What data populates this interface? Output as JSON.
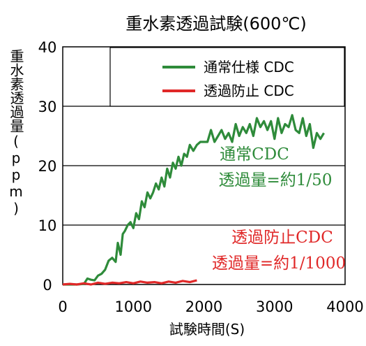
{
  "chart_data": {
    "type": "line",
    "title": "重水素透過試験(600℃)",
    "xlabel": "試験時間(S)",
    "ylabel": "重水素透過量(ppm)",
    "xlim": [
      0,
      4000
    ],
    "ylim": [
      0,
      40
    ],
    "xticks": [
      0,
      1000,
      2000,
      3000,
      4000
    ],
    "yticks": [
      0,
      10,
      20,
      30,
      40
    ],
    "grid": "horizontal",
    "legend_position": "top-right",
    "series": [
      {
        "name": "通常仕様 CDC",
        "color": "#2e8b3a",
        "x": [
          0,
          100,
          200,
          300,
          350,
          400,
          450,
          500,
          550,
          600,
          650,
          700,
          750,
          780,
          820,
          850,
          880,
          920,
          960,
          1000,
          1040,
          1080,
          1120,
          1160,
          1200,
          1240,
          1280,
          1320,
          1360,
          1400,
          1440,
          1480,
          1520,
          1560,
          1600,
          1640,
          1680,
          1720,
          1760,
          1800,
          1850,
          1900,
          1950,
          2000,
          2050,
          2100,
          2150,
          2200,
          2250,
          2300,
          2350,
          2400,
          2450,
          2500,
          2550,
          2600,
          2650,
          2700,
          2750,
          2800,
          2850,
          2900,
          2950,
          3000,
          3050,
          3100,
          3150,
          3200,
          3250,
          3300,
          3350,
          3400,
          3450,
          3500,
          3550,
          3600,
          3650,
          3700
        ],
        "y": [
          0,
          0,
          0,
          0.1,
          1,
          0.8,
          0.7,
          1.5,
          1.8,
          2.5,
          4,
          4.5,
          3.8,
          7,
          5,
          8.5,
          9,
          10,
          10.5,
          9.5,
          12,
          11,
          14,
          13,
          15.5,
          14.5,
          15.5,
          17,
          16,
          18,
          16.5,
          19.5,
          18,
          20.5,
          19.5,
          21.5,
          20,
          22,
          21.5,
          23.5,
          22.5,
          23.5,
          24,
          24,
          24,
          26,
          24,
          25,
          26,
          24.5,
          25.5,
          24,
          27,
          25,
          26.5,
          25.5,
          27,
          25,
          28,
          26.5,
          27.5,
          26,
          27.5,
          24.5,
          28,
          25.5,
          27,
          26.5,
          28.5,
          26,
          25.5,
          28,
          25,
          27,
          23,
          25.5,
          24.5,
          25.5
        ]
      },
      {
        "name": "透過防止 CDC",
        "color": "#e02828",
        "x": [
          0,
          100,
          200,
          300,
          400,
          500,
          600,
          700,
          800,
          900,
          1000,
          1100,
          1200,
          1300,
          1400,
          1500,
          1600,
          1700,
          1800,
          1900
        ],
        "y": [
          0,
          0.1,
          0,
          0.2,
          0,
          0.3,
          0.1,
          0.3,
          0.2,
          0.4,
          0.2,
          0.5,
          0.3,
          0.4,
          0.2,
          0.5,
          0.3,
          0.6,
          0.4,
          0.7
        ]
      }
    ],
    "annotations": [
      {
        "lines": [
          "通常CDC",
          "透過量=約1/50"
        ],
        "color": "#2e8b3a"
      },
      {
        "lines": [
          "透過防止CDC",
          "透過量=約1/1000"
        ],
        "color": "#e02828"
      }
    ]
  }
}
